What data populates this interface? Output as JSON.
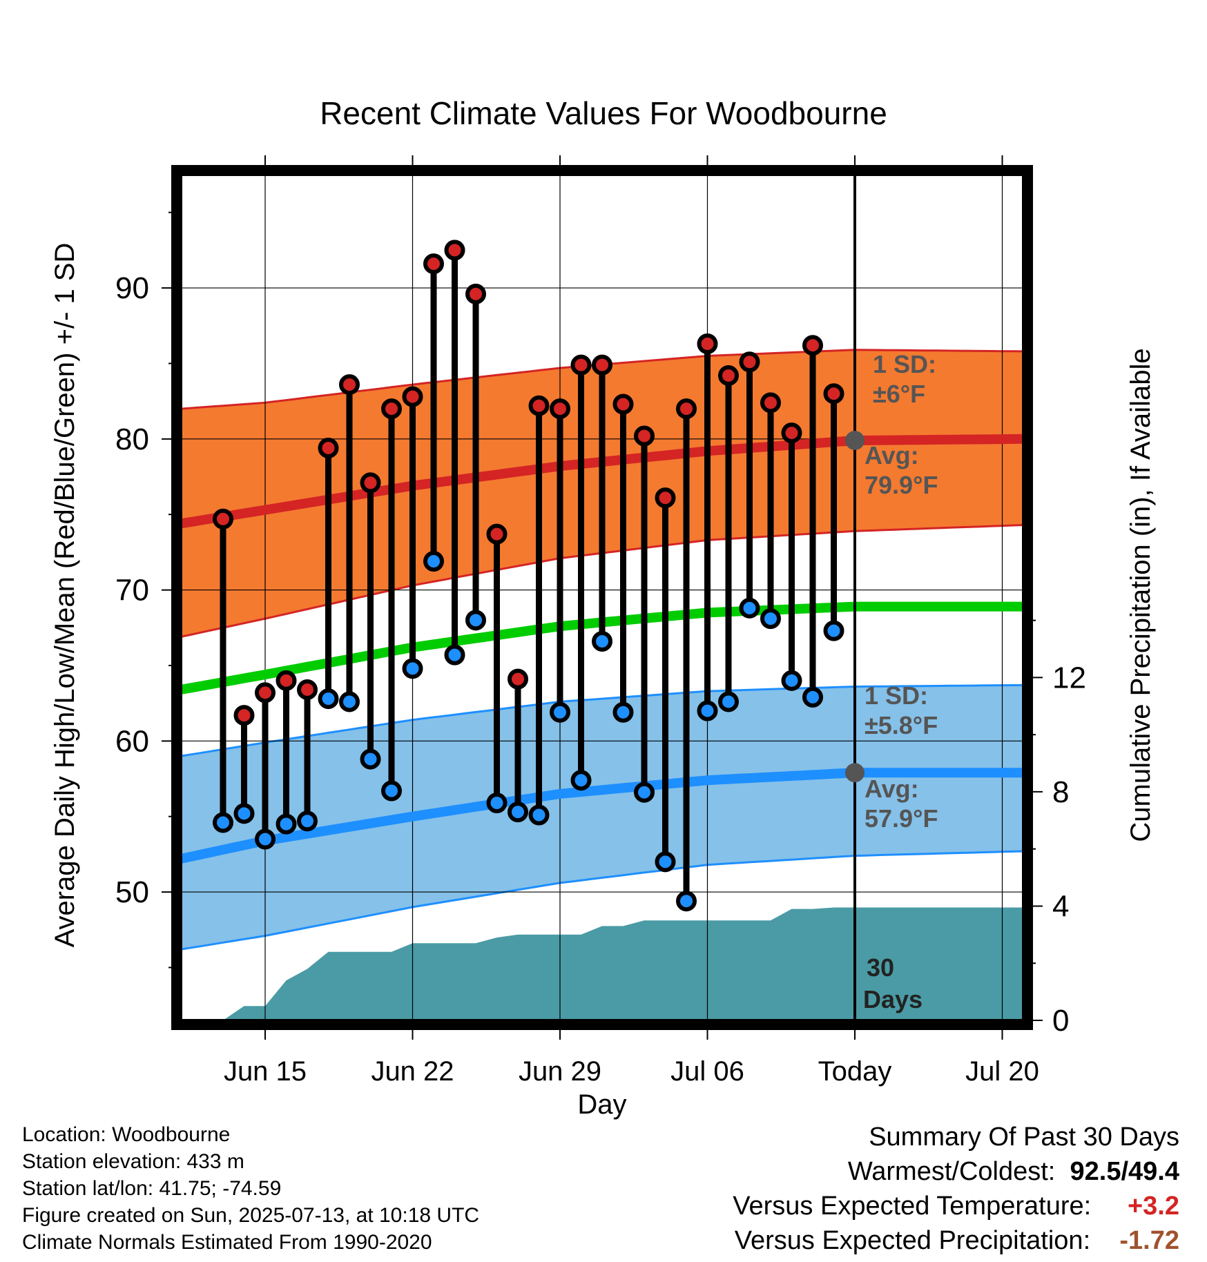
{
  "chart_data": {
    "type": "line",
    "title": "Recent Climate Values For Woodbourne",
    "xlabel": "Day",
    "ylabel": "Average Daily High/Low/Mean (Red/Blue/Green) +/- 1 SD",
    "y2label": "Cumulative Precipitation (in), If Available",
    "ylim": [
      41.5,
      97.5
    ],
    "yticks": [
      50,
      60,
      70,
      80,
      90
    ],
    "y2lim": [
      0,
      29.6
    ],
    "y2ticks": [
      0,
      4,
      8,
      12
    ],
    "xlim": [
      "2025-06-11",
      "2025-07-21"
    ],
    "xticks": [
      {
        "date": "2025-06-15",
        "label": "Jun 15"
      },
      {
        "date": "2025-06-22",
        "label": "Jun 22"
      },
      {
        "date": "2025-06-29",
        "label": "Jun 29"
      },
      {
        "date": "2025-07-06",
        "label": "Jul 06"
      },
      {
        "date": "2025-07-13",
        "label": "Today"
      },
      {
        "date": "2025-07-20",
        "label": "Jul 20"
      }
    ],
    "grid": true,
    "today": "2025-07-13",
    "dates": [
      "2025-06-13",
      "2025-06-14",
      "2025-06-15",
      "2025-06-16",
      "2025-06-17",
      "2025-06-18",
      "2025-06-19",
      "2025-06-20",
      "2025-06-21",
      "2025-06-22",
      "2025-06-23",
      "2025-06-24",
      "2025-06-25",
      "2025-06-26",
      "2025-06-27",
      "2025-06-28",
      "2025-06-29",
      "2025-06-30",
      "2025-07-01",
      "2025-07-02",
      "2025-07-03",
      "2025-07-04",
      "2025-07-05",
      "2025-07-06",
      "2025-07-07",
      "2025-07-08",
      "2025-07-09",
      "2025-07-10",
      "2025-07-11",
      "2025-07-12"
    ],
    "daily_high": [
      74.7,
      61.7,
      63.2,
      64.0,
      63.4,
      79.4,
      83.6,
      77.1,
      82.0,
      82.8,
      91.6,
      92.5,
      89.6,
      73.7,
      64.1,
      82.2,
      82.0,
      84.9,
      84.9,
      82.3,
      80.2,
      76.1,
      82.0,
      86.3,
      84.2,
      85.1,
      82.4,
      80.4,
      86.2,
      83.0
    ],
    "daily_low": [
      54.6,
      55.2,
      53.5,
      54.5,
      54.7,
      62.8,
      62.6,
      58.8,
      56.7,
      64.8,
      71.9,
      65.7,
      68.0,
      55.9,
      55.3,
      55.1,
      61.9,
      57.4,
      66.6,
      61.9,
      56.6,
      52.0,
      49.4,
      62.0,
      62.6,
      68.8,
      68.1,
      64.0,
      62.9,
      67.3
    ],
    "normal_high": {
      "dates": [
        "2025-06-11",
        "2025-06-15",
        "2025-06-22",
        "2025-06-29",
        "2025-07-06",
        "2025-07-13",
        "2025-07-21"
      ],
      "avg": [
        74.4,
        75.3,
        76.9,
        78.2,
        79.2,
        79.9,
        80.0
      ],
      "upper": [
        82.0,
        82.4,
        83.6,
        84.7,
        85.5,
        85.9,
        85.8
      ],
      "lower": [
        66.9,
        68.1,
        70.3,
        72.1,
        73.3,
        73.9,
        74.3
      ]
    },
    "normal_low": {
      "dates": [
        "2025-06-11",
        "2025-06-15",
        "2025-06-22",
        "2025-06-29",
        "2025-07-06",
        "2025-07-13",
        "2025-07-21"
      ],
      "avg": [
        52.2,
        53.4,
        55.0,
        56.5,
        57.4,
        57.9,
        57.9
      ],
      "upper": [
        59.0,
        59.9,
        61.4,
        62.6,
        63.3,
        63.6,
        63.7
      ],
      "lower": [
        46.2,
        47.1,
        49.0,
        50.6,
        51.8,
        52.4,
        52.7
      ]
    },
    "normal_mean": {
      "dates": [
        "2025-06-11",
        "2025-06-15",
        "2025-06-22",
        "2025-06-29",
        "2025-07-06",
        "2025-07-13",
        "2025-07-21"
      ],
      "avg": [
        63.4,
        64.4,
        66.2,
        67.6,
        68.5,
        68.9,
        68.9
      ]
    },
    "cumulative_precip": {
      "dates": [
        "2025-06-12",
        "2025-06-13",
        "2025-06-14",
        "2025-06-15",
        "2025-06-16",
        "2025-06-17",
        "2025-06-18",
        "2025-06-19",
        "2025-06-20",
        "2025-06-21",
        "2025-06-22",
        "2025-06-23",
        "2025-06-24",
        "2025-06-25",
        "2025-06-26",
        "2025-06-27",
        "2025-06-28",
        "2025-06-29",
        "2025-06-30",
        "2025-07-01",
        "2025-07-02",
        "2025-07-03",
        "2025-07-04",
        "2025-07-05",
        "2025-07-06",
        "2025-07-07",
        "2025-07-08",
        "2025-07-09",
        "2025-07-10",
        "2025-07-11",
        "2025-07-12",
        "2025-07-13",
        "2025-07-21"
      ],
      "values": [
        0.0,
        0.0,
        0.5,
        0.5,
        1.4,
        1.8,
        2.4,
        2.4,
        2.4,
        2.4,
        2.7,
        2.7,
        2.7,
        2.7,
        2.9,
        3.0,
        3.0,
        3.0,
        3.0,
        3.3,
        3.3,
        3.5,
        3.5,
        3.5,
        3.5,
        3.5,
        3.5,
        3.5,
        3.9,
        3.9,
        3.95,
        3.95,
        3.95
      ]
    },
    "annotations": {
      "high_sd_label": "1 SD:",
      "high_sd_value": "±6°F",
      "high_avg_label": "Avg:",
      "high_avg_value": "79.9°F",
      "low_sd_label": "1 SD:",
      "low_sd_value": "±5.8°F",
      "low_avg_label": "Avg:",
      "low_avg_value": "57.9°F",
      "days_count": "30",
      "days_word": "Days"
    },
    "colors": {
      "high_band": "#f47a30",
      "high_line": "#d42424",
      "low_band": "#85c1e9",
      "low_line": "#1e8fff",
      "mean_line": "#00cc00",
      "precip": "#4a9ba5",
      "high_dot": "#d42424",
      "low_dot": "#1e8fff",
      "annotation_text": "#555555"
    }
  },
  "info": {
    "location": "Location: Woodbourne",
    "elevation": "Station elevation: 433 m",
    "latlon": "Station lat/lon: 41.75; -74.59",
    "created": "Figure created on Sun, 2025-07-13, at 10:18 UTC",
    "normals": "Climate Normals Estimated From 1990-2020"
  },
  "summary": {
    "title": "Summary Of Past 30 Days",
    "warm_cold_label": "Warmest/Coldest:",
    "warmest": "92.5",
    "coldest": "49.4",
    "temp_label": "Versus Expected Temperature:",
    "temp_value": "+3.2",
    "precip_label": "Versus Expected Precipitation:",
    "precip_value": "-1.72"
  }
}
